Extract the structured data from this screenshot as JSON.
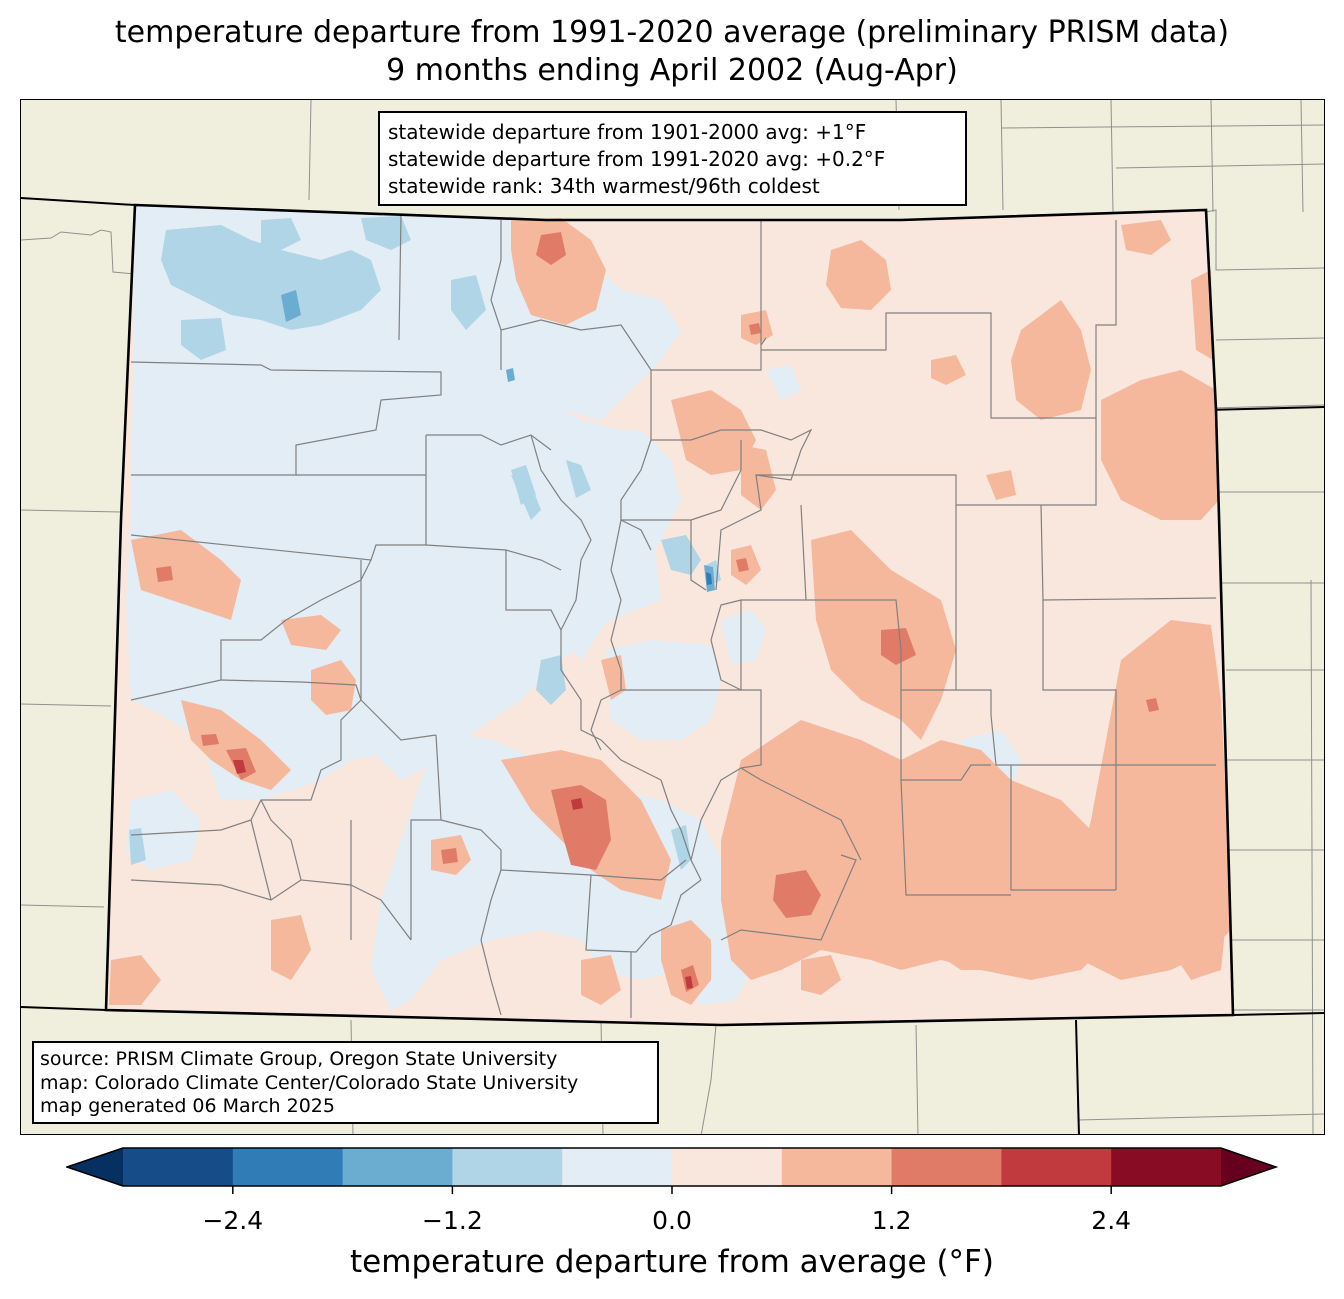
{
  "title": {
    "line1": "temperature departure from 1991-2020 average (preliminary PRISM data)",
    "line2": "9 months ending April 2002 (Aug-Apr)"
  },
  "stats": {
    "line1": "statewide departure from 1901-2000 avg: +1°F",
    "line2": "statewide departure from 1991-2020 avg: +0.2°F",
    "line3": "statewide rank: 34th warmest/96th coldest"
  },
  "source": {
    "line1": "source: PRISM Climate Group, Oregon State University",
    "line2": "map: Colorado Climate Center/Colorado State University",
    "line3": "map generated 06 March 2025"
  },
  "colorbar": {
    "label": "temperature departure from average (°F)",
    "ticks": [
      "−2.4",
      "−1.2",
      "0.0",
      "1.2",
      "2.4"
    ],
    "tick_values": [
      -2.4,
      -1.2,
      0.0,
      1.2,
      2.4
    ],
    "bounds": [
      -3.0,
      -2.4,
      -1.8,
      -1.2,
      -0.6,
      0.0,
      0.6,
      1.2,
      1.8,
      2.4,
      3.0
    ],
    "colors": [
      "#164c87",
      "#2f7cb7",
      "#6bacd1",
      "#b0d5e7",
      "#e3edf5",
      "#f9e7de",
      "#f5b89c",
      "#e07b68",
      "#c13b3e",
      "#890c25"
    ],
    "under_color": "#053061",
    "over_color": "#67001f"
  },
  "map_colors": {
    "land": "#f0eedc",
    "county_lines": "#808080",
    "state_lines": "#000000"
  }
}
